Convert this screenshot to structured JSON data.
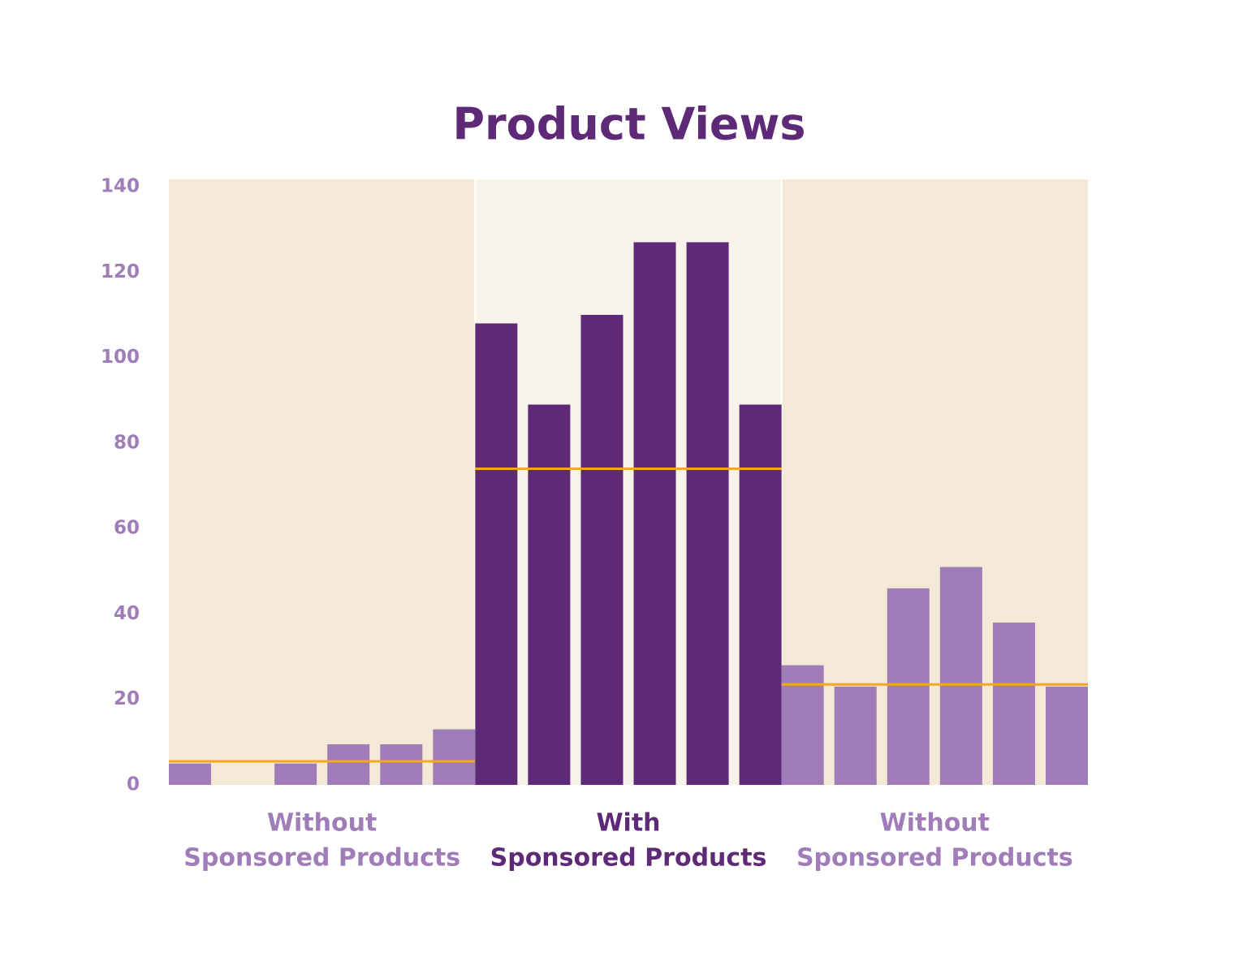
{
  "chart_data": {
    "type": "bar",
    "title": "Product Views",
    "ylim": [
      0,
      140
    ],
    "yticks": [
      0,
      20,
      40,
      60,
      80,
      100,
      120,
      140
    ],
    "average_color": "#f5a623",
    "groups": [
      {
        "label": [
          "Without",
          "Sponsored Products"
        ],
        "color": "#a07cb8",
        "background": "#f3e9d6",
        "values": [
          5,
          0,
          5,
          9.5,
          9.5,
          13
        ],
        "average": 5.5
      },
      {
        "label": [
          "With",
          "Sponsored Products"
        ],
        "color": "#5e2a78",
        "background": "#f7f3ea",
        "values": [
          108,
          89,
          110,
          127,
          127,
          89
        ],
        "average": 74
      },
      {
        "label": [
          "Without",
          "Sponsored Products"
        ],
        "color": "#a07cb8",
        "background": "#f3e9d6",
        "values": [
          28,
          23,
          46,
          51,
          38,
          23
        ],
        "average": 23.5
      }
    ]
  }
}
